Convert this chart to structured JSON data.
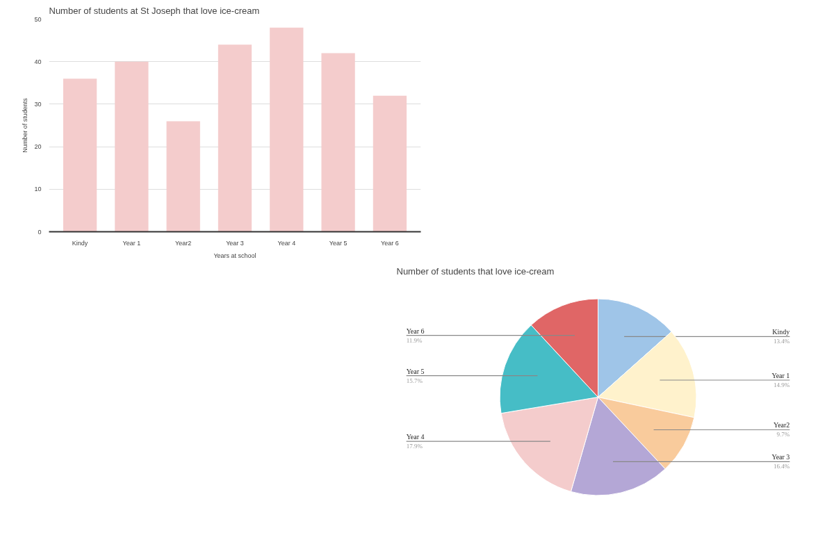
{
  "chart_data": [
    {
      "type": "bar",
      "title": "Number of students at St Joseph that love ice-cream",
      "xlabel": "Years at school",
      "ylabel": "Number of students",
      "categories": [
        "Kindy",
        "Year 1",
        "Year2",
        "Year 3",
        "Year 4",
        "Year 5",
        "Year 6"
      ],
      "series": [
        {
          "color": "#f4cccc",
          "values": [
            36,
            40,
            26,
            44,
            48,
            42,
            32
          ]
        }
      ],
      "ylim": [
        0,
        50
      ],
      "yticks": [
        0,
        10,
        20,
        30,
        40,
        50
      ],
      "grid": "y"
    },
    {
      "type": "pie",
      "title": "Number of students that love ice-cream",
      "categories": [
        "Kindy",
        "Year 1",
        "Year2",
        "Year 3",
        "Year 4",
        "Year 5",
        "Year 6"
      ],
      "values": [
        13.4,
        14.9,
        9.7,
        16.4,
        17.9,
        15.7,
        11.9
      ],
      "colors": [
        "#9fc5e8",
        "#fff2cc",
        "#f9cb9c",
        "#b4a7d6",
        "#f4cccc",
        "#46bdc6",
        "#e06666"
      ],
      "value_labels": [
        "13.4%",
        "14.9%",
        "9.7%",
        "16.4%",
        "17.9%",
        "15.7%",
        "11.9%"
      ]
    }
  ]
}
